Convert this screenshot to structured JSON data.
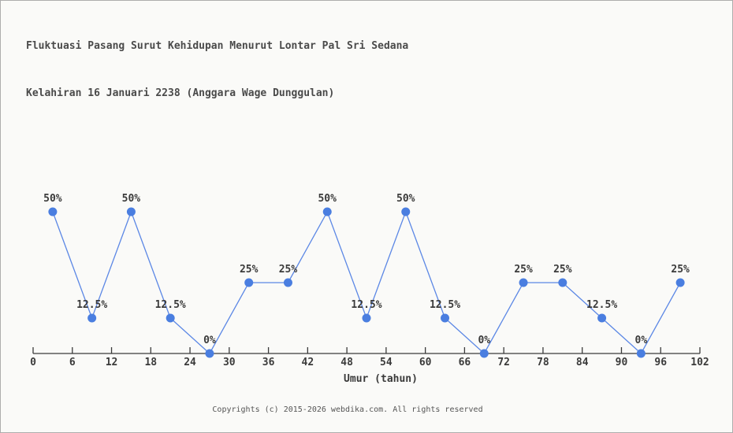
{
  "page": {
    "title_line1": "Fluktuasi Pasang Surut Kehidupan Menurut Lontar Pal Sri Sedana",
    "title_line2": "Kelahiran 16 Januari 2238 (Anggara Wage Dunggulan)",
    "footer": "Copyrights (c) 2015-2026 webdika.com. All rights reserved"
  },
  "chart_data": {
    "type": "line",
    "title": "Fluktuasi Pasang Surut Kehidupan Menurut Lontar Pal Sri Sedana Kelahiran 16 Januari 2238 (Anggara Wage Dunggulan)",
    "xlabel": "Umur (tahun)",
    "ylabel": "",
    "x": [
      3,
      9,
      15,
      21,
      27,
      33,
      39,
      45,
      51,
      57,
      63,
      69,
      75,
      81,
      87,
      93,
      99
    ],
    "values": [
      50,
      12.5,
      50,
      12.5,
      0,
      25,
      25,
      50,
      12.5,
      50,
      12.5,
      0,
      25,
      25,
      12.5,
      0,
      25
    ],
    "point_labels": [
      "50%",
      "12.5%",
      "50%",
      "12.5%",
      "0%",
      "25%",
      "25%",
      "50%",
      "12.5%",
      "50%",
      "12.5%",
      "0%",
      "25%",
      "25%",
      "12.5%",
      "0%",
      "25%"
    ],
    "x_ticks": [
      0,
      6,
      12,
      18,
      24,
      30,
      36,
      42,
      48,
      54,
      60,
      66,
      72,
      78,
      84,
      90,
      96,
      102
    ],
    "xlim": [
      0,
      102
    ],
    "ylim": [
      0,
      55
    ],
    "grid": false,
    "legend": false,
    "colors": {
      "line": "#5b87e5",
      "marker": "#4a7ee0",
      "axis": "#3a3a3a",
      "label": "#3a3a3a",
      "background": "#fafaf8"
    }
  }
}
